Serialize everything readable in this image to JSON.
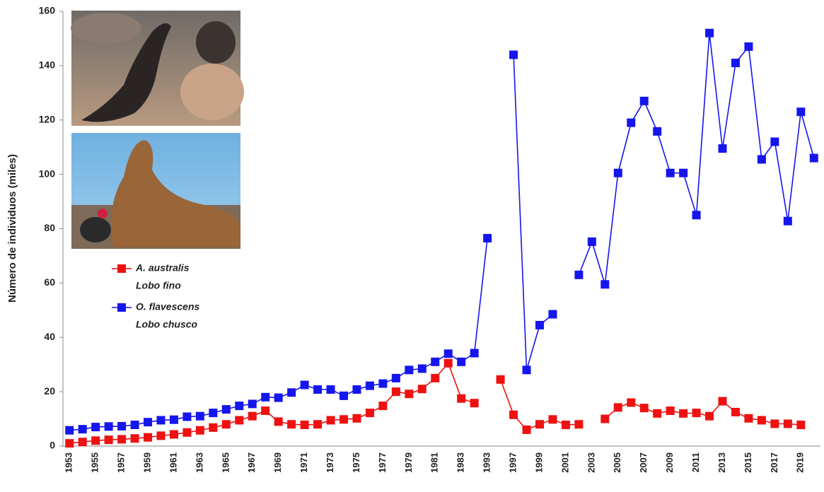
{
  "chart_data": {
    "type": "line",
    "y_label": "Número de individuos (miles)",
    "categories": [
      "1953",
      null,
      "1955",
      null,
      "1957",
      null,
      "1959",
      null,
      "1961",
      null,
      "1963",
      null,
      "1965",
      null,
      "1967",
      null,
      "1969",
      null,
      "1971",
      null,
      "1973",
      null,
      "1975",
      null,
      "1977",
      null,
      "1979",
      null,
      "1981",
      null,
      "1983",
      null,
      "1993",
      null,
      "1997",
      null,
      "1999",
      null,
      "2001",
      null,
      "2003",
      null,
      "2005",
      null,
      "2007",
      null,
      "2009",
      null,
      "2011",
      null,
      "2013",
      null,
      "2015",
      null,
      "2017",
      null,
      "2019",
      null
    ],
    "series": [
      {
        "name": "A. australis",
        "common_name": "Lobo fino",
        "color": "#ee1111",
        "values": [
          1,
          1.5,
          2,
          2.3,
          2.5,
          2.8,
          3.2,
          3.8,
          4.3,
          5,
          5.8,
          6.8,
          8,
          9.5,
          11,
          13,
          9,
          8,
          7.8,
          8,
          9.5,
          9.8,
          10.2,
          12.2,
          14.8,
          20,
          19.2,
          21,
          25,
          30.5,
          17.5,
          15.8,
          null,
          24.5,
          11.5,
          6,
          8,
          9.8,
          7.8,
          8,
          null,
          10,
          14.2,
          16,
          14,
          12,
          13,
          12,
          12.2,
          11,
          16.5,
          12.5,
          10.2,
          9.5,
          8.2,
          8.2,
          7.8,
          null
        ]
      },
      {
        "name": "O. flavescens",
        "common_name": "Lobo chusco",
        "color": "#1515ee",
        "values": [
          5.8,
          6.2,
          7,
          7.2,
          7.3,
          7.8,
          8.8,
          9.5,
          9.7,
          10.8,
          11,
          12.2,
          13.5,
          14.8,
          15.5,
          18,
          17.8,
          19.7,
          22.5,
          20.8,
          20.8,
          18.5,
          20.8,
          22.2,
          23,
          25,
          28,
          28.5,
          31,
          34,
          31,
          34.2,
          76.5,
          null,
          144,
          28,
          44.5,
          48.5,
          null,
          63,
          75.2,
          59.5,
          100.5,
          119,
          127,
          115.8,
          100.5,
          100.5,
          85,
          152,
          109.5,
          141,
          147,
          105.5,
          112,
          82.8,
          123,
          106
        ]
      }
    ],
    "ylim": [
      0,
      160
    ],
    "yticks": [
      0,
      20,
      40,
      60,
      80,
      100,
      120,
      140,
      160
    ],
    "grid": false
  }
}
